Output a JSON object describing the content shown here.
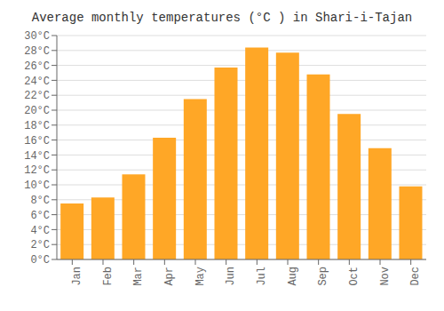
{
  "chart_data": {
    "type": "bar",
    "title": "Average monthly temperatures (°C ) in Shari-i-Tajan",
    "categories": [
      "Jan",
      "Feb",
      "Mar",
      "Apr",
      "May",
      "Jun",
      "Jul",
      "Aug",
      "Sep",
      "Oct",
      "Nov",
      "Dec"
    ],
    "values": [
      7.5,
      8.3,
      11.4,
      16.3,
      21.5,
      25.7,
      28.4,
      27.7,
      24.8,
      19.5,
      14.9,
      9.8
    ],
    "color": "#FFA726",
    "ylim": [
      0,
      30
    ],
    "yticks": [
      {
        "value": 0,
        "label": "0°C"
      },
      {
        "value": 2,
        "label": "2°C"
      },
      {
        "value": 4,
        "label": "4°C"
      },
      {
        "value": 6,
        "label": "6°C"
      },
      {
        "value": 8,
        "label": "8°C"
      },
      {
        "value": 10,
        "label": "10°C"
      },
      {
        "value": 12,
        "label": "12°C"
      },
      {
        "value": 14,
        "label": "14°C"
      },
      {
        "value": 16,
        "label": "16°C"
      },
      {
        "value": 18,
        "label": "18°C"
      },
      {
        "value": 20,
        "label": "20°C"
      },
      {
        "value": 22,
        "label": "22°C"
      },
      {
        "value": 24,
        "label": "24°C"
      },
      {
        "value": 26,
        "label": "26°C"
      },
      {
        "value": 28,
        "label": "28°C"
      },
      {
        "value": 30,
        "label": "30°C"
      }
    ],
    "grid": true
  }
}
